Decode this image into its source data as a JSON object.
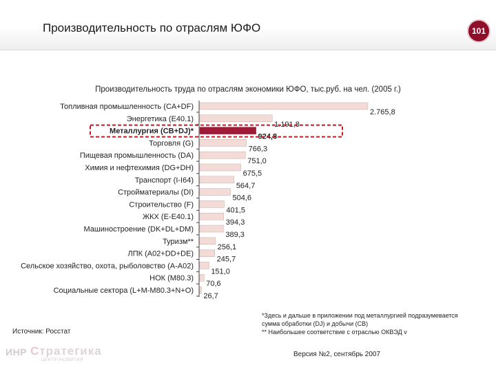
{
  "header": {
    "title": "Производительность по отраслям ЮФО",
    "page_number": "101"
  },
  "chart_data": {
    "type": "bar",
    "orientation": "horizontal",
    "title": "Производительность труда по отраслям экономики  ЮФО, тыс.руб. на чел. (2005 г.)",
    "categories": [
      "Топливная промышленность (CA+DF)",
      "Энергетика (E40.1)",
      "Металлургия (CB+DJ)*",
      "Торговля (G)",
      "Пищевая промышленность (DA)",
      "Химия и нефтехимия (DG+DH)",
      "Транспорт (I-I64)",
      "Стройматериалы (DI)",
      "Строительство (F)",
      "ЖКХ (E-E40.1)",
      "Машиностроение (DK+DL+DM)",
      "Туризм**",
      "ЛПК (A02+DD+DE)",
      "Сельское хозяйство, охота, рыболовство (A-A02)",
      "НОК (M80.3)",
      "Социальные сектора (L+M-M80.3+N+O)"
    ],
    "values": [
      2765.8,
      1191.8,
      924.8,
      766.3,
      751.0,
      675.5,
      564.7,
      504.6,
      401.5,
      394.3,
      389.3,
      256.1,
      245.7,
      151.0,
      70.6,
      26.7
    ],
    "value_labels": [
      "2.765,8",
      "1.191,8",
      "924,8",
      "766,3",
      "751,0",
      "675,5",
      "564,7",
      "504,6",
      "401,5",
      "394,3",
      "389,3",
      "256,1",
      "245,7",
      "151,0",
      "70,6",
      "26,7"
    ],
    "highlight_index": 2,
    "xlim": [
      0,
      2765.8
    ],
    "grid": false,
    "colors": {
      "bar": "#f3dcd8",
      "bar_border": "#c8a9a4",
      "highlight": "#9e1a36",
      "highlight_box": "#d0121b"
    }
  },
  "footer": {
    "source": "Источник: Росстат",
    "notes": [
      "*Здесь и дальше в приложении под металлургией подразумевается",
      "сумма обработки (DJ) и добычи (CB)",
      "** Наибольшее соответствие с отраслью ОКВЭД v"
    ],
    "version": "Версия №2, сентябрь 2007",
    "logo": {
      "mark": "ИНР",
      "text_first": "С",
      "text_rest": "тратегика",
      "tagline": "ЦЕНТР РАЗВИТИЯ"
    }
  }
}
